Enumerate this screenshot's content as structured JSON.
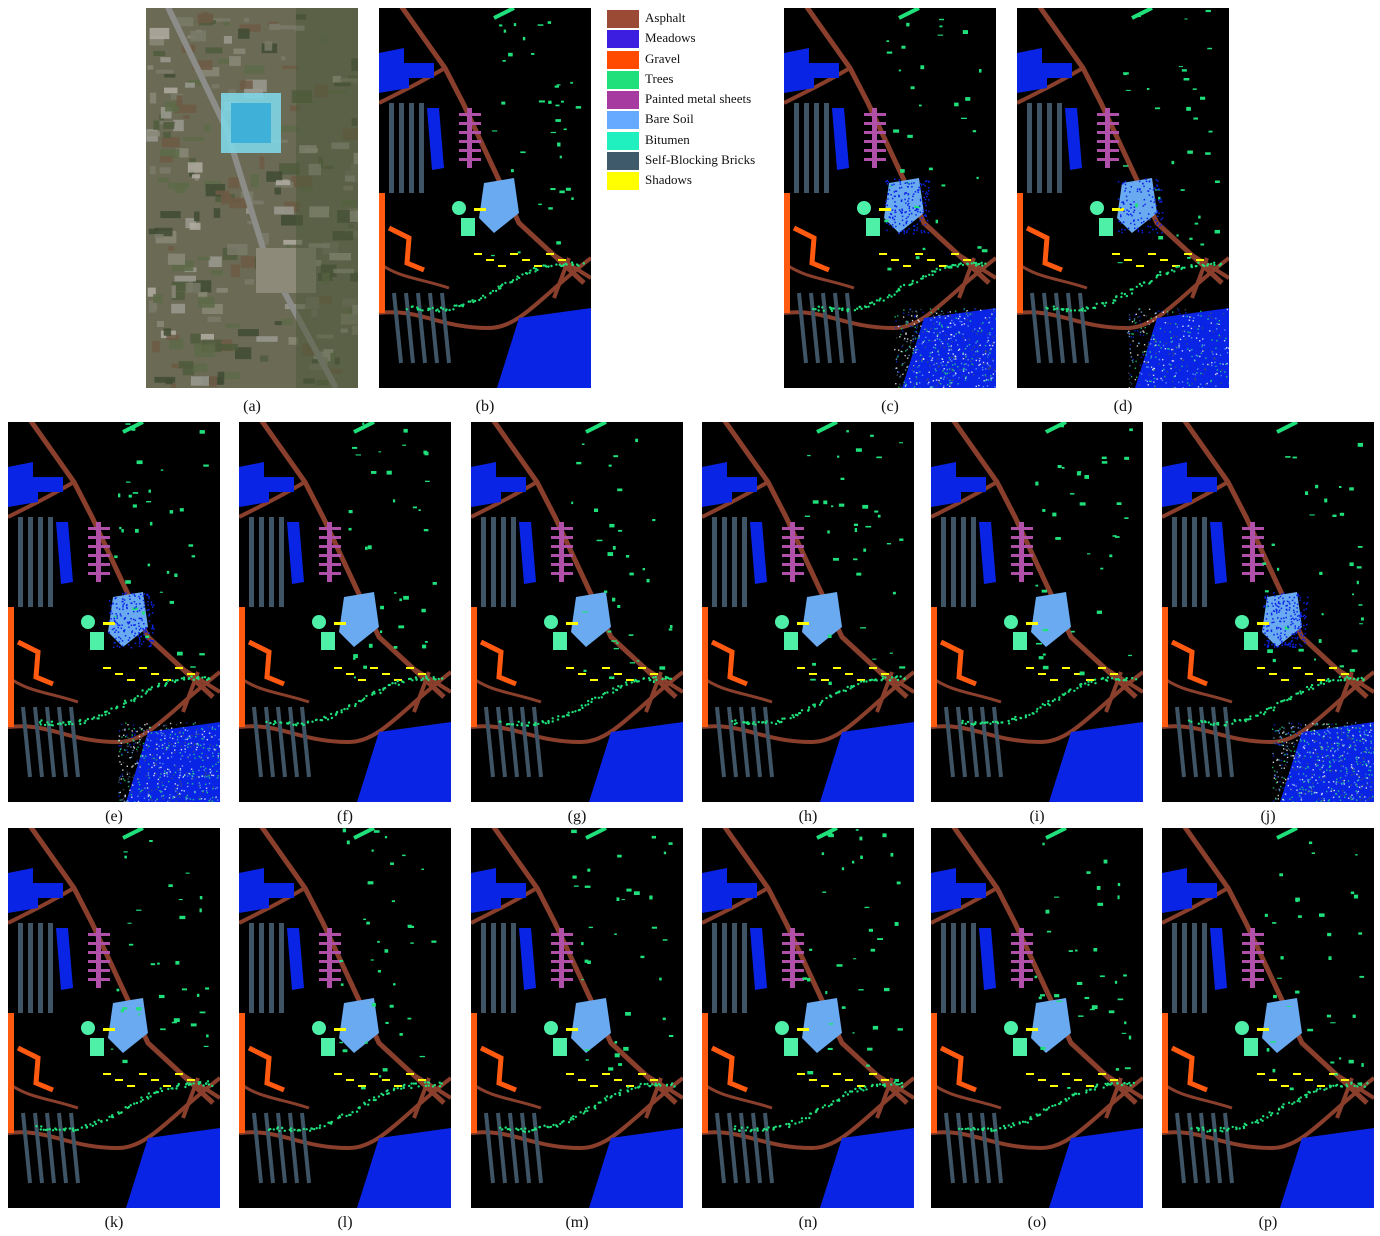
{
  "figure": {
    "panels": [
      {
        "id": "a",
        "caption": "(a)",
        "kind": "rgb"
      },
      {
        "id": "b",
        "caption": "(b)",
        "kind": "ground-truth"
      },
      {
        "id": "c",
        "caption": "(c)",
        "kind": "noisy",
        "noise": 0.85
      },
      {
        "id": "d",
        "caption": "(d)",
        "kind": "noisy",
        "noise": 0.6
      },
      {
        "id": "e",
        "caption": "(e)",
        "kind": "noisy",
        "noise": 0.9
      },
      {
        "id": "f",
        "caption": "(f)",
        "kind": "clean"
      },
      {
        "id": "g",
        "caption": "(g)",
        "kind": "clean"
      },
      {
        "id": "h",
        "caption": "(h)",
        "kind": "clean"
      },
      {
        "id": "i",
        "caption": "(i)",
        "kind": "clean"
      },
      {
        "id": "j",
        "caption": "(j)",
        "kind": "noisy",
        "noise": 1.0
      },
      {
        "id": "k",
        "caption": "(k)",
        "kind": "clean"
      },
      {
        "id": "l",
        "caption": "(l)",
        "kind": "clean"
      },
      {
        "id": "m",
        "caption": "(m)",
        "kind": "clean"
      },
      {
        "id": "n",
        "caption": "(n)",
        "kind": "clean"
      },
      {
        "id": "o",
        "caption": "(o)",
        "kind": "clean"
      },
      {
        "id": "p",
        "caption": "(p)",
        "kind": "clean"
      }
    ]
  },
  "legend": [
    {
      "label": "Asphalt",
      "color": "#9a4a35"
    },
    {
      "label": "Meadows",
      "color": "#3b1ee0"
    },
    {
      "label": "Gravel",
      "color": "#ff4a00"
    },
    {
      "label": "Trees",
      "color": "#1fe07a"
    },
    {
      "label": "Painted metal sheets",
      "color": "#a63aa0"
    },
    {
      "label": "Bare Soil",
      "color": "#66aaff"
    },
    {
      "label": "Bitumen",
      "color": "#20f0c0"
    },
    {
      "label": "Self-Blocking Bricks",
      "color": "#3f5a6a"
    },
    {
      "label": "Shadows",
      "color": "#ffff00"
    }
  ],
  "colors": {
    "background": "#000000",
    "asphalt_road": "#8a3f2c",
    "meadows_fill": "#0a24e6",
    "bare_soil": "#6aaaf0",
    "metal": "#b050a8",
    "bricks": "#3f5566",
    "trees": "#1fe07a",
    "bitumen": "#4ef0a8",
    "gravel": "#ff5a10",
    "shadows": "#ffff00"
  }
}
